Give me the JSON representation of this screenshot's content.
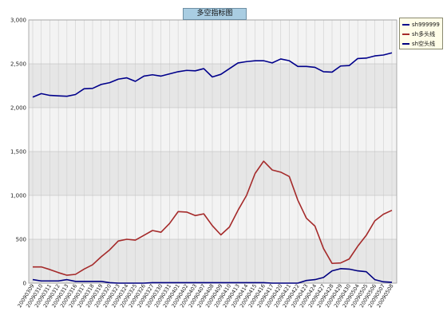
{
  "chart_data": {
    "type": "line",
    "title": "多空指标图",
    "ylim": [
      0,
      3000
    ],
    "yticks": [
      0,
      500,
      1000,
      1500,
      2000,
      2500,
      3000
    ],
    "ytick_labels": [
      "0",
      "500",
      "1,000",
      "1,500",
      "2,000",
      "2,500",
      "3,000"
    ],
    "grid": true,
    "legend_position": "top-right",
    "categories": [
      "20090309",
      "20090310",
      "20090311",
      "20090312",
      "20090313",
      "20090316",
      "20090317",
      "20090318",
      "20090319",
      "20090320",
      "20090323",
      "20090324",
      "20090325",
      "20090326",
      "20090327",
      "20090330",
      "20090331",
      "20090401",
      "20090402",
      "20090403",
      "20090407",
      "20090408",
      "20090409",
      "20090410",
      "20090413",
      "20090414",
      "20090415",
      "20090416",
      "20090417",
      "20090420",
      "20090421",
      "20090422",
      "20090423",
      "20090424",
      "20090427",
      "20090428",
      "20090429",
      "20090430",
      "20090504",
      "20090505",
      "20090506",
      "20090507",
      "20090508"
    ],
    "series": [
      {
        "name": "sh999999",
        "color": "#00008b",
        "values": [
          2120,
          2160,
          2140,
          2135,
          2130,
          2150,
          2215,
          2220,
          2265,
          2285,
          2325,
          2340,
          2300,
          2360,
          2375,
          2360,
          2385,
          2410,
          2425,
          2420,
          2445,
          2350,
          2380,
          2445,
          2510,
          2525,
          2535,
          2535,
          2510,
          2555,
          2535,
          2470,
          2470,
          2460,
          2410,
          2405,
          2475,
          2480,
          2560,
          2565,
          2590,
          2600,
          2625
        ]
      },
      {
        "name": "sh多头线",
        "color": "#a52a2a",
        "values": [
          185,
          185,
          155,
          120,
          90,
          100,
          160,
          210,
          300,
          380,
          480,
          500,
          490,
          545,
          600,
          580,
          680,
          815,
          810,
          770,
          790,
          655,
          550,
          640,
          830,
          1000,
          1250,
          1390,
          1290,
          1265,
          1215,
          945,
          740,
          650,
          395,
          225,
          230,
          275,
          420,
          545,
          710,
          785,
          830
        ]
      },
      {
        "name": "sh空头线",
        "color": "#000080",
        "values": [
          40,
          25,
          25,
          25,
          40,
          20,
          20,
          20,
          20,
          5,
          0,
          0,
          0,
          0,
          5,
          5,
          5,
          5,
          5,
          5,
          5,
          5,
          5,
          5,
          5,
          5,
          5,
          5,
          0,
          0,
          0,
          0,
          30,
          40,
          65,
          140,
          165,
          160,
          140,
          130,
          40,
          15,
          10
        ]
      }
    ]
  }
}
